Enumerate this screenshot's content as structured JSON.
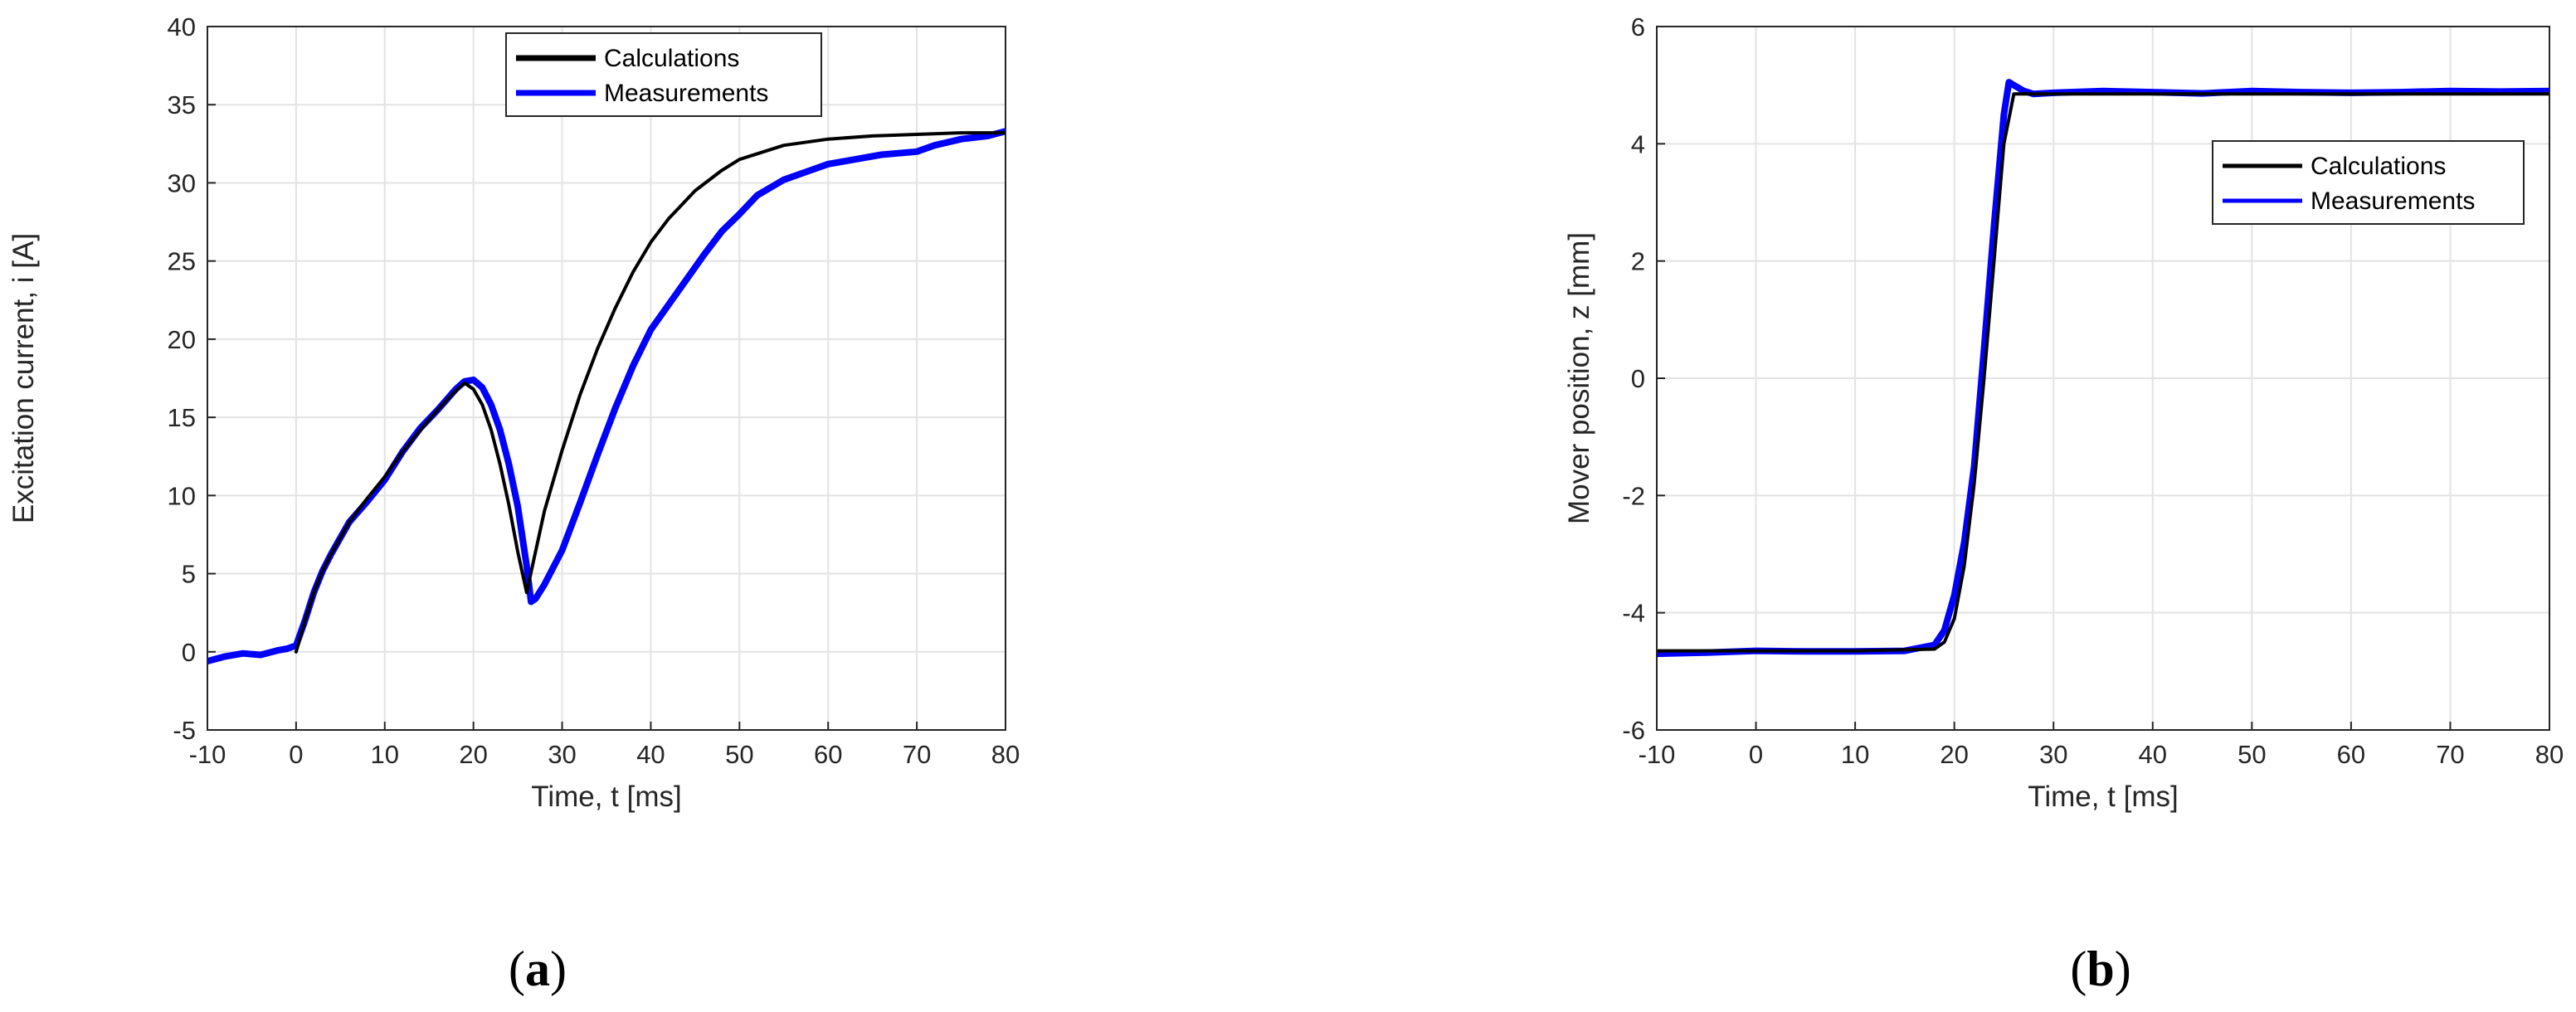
{
  "chart_data": [
    {
      "panel": "a",
      "type": "line",
      "xlabel": "Time, t [ms]",
      "ylabel": "Excitation current, i [A]",
      "xlim": [
        -10,
        80
      ],
      "ylim": [
        -5,
        40
      ],
      "xticks": [
        -10,
        0,
        10,
        20,
        30,
        40,
        50,
        60,
        70,
        80
      ],
      "yticks": [
        -5,
        0,
        5,
        10,
        15,
        20,
        25,
        30,
        35,
        40
      ],
      "grid": true,
      "legend_placement": "top-center",
      "caption": {
        "open": "(",
        "letter": "a",
        "close": ")"
      },
      "series": [
        {
          "name": "Calculations",
          "color": "#000000",
          "x": [
            0,
            1,
            2,
            3,
            4,
            6,
            8,
            10,
            12,
            14,
            16,
            18,
            19,
            20,
            21,
            22,
            23,
            24,
            25,
            26,
            27,
            28,
            30,
            32,
            34,
            36,
            38,
            40,
            42,
            45,
            48,
            50,
            55,
            60,
            65,
            70,
            75,
            80
          ],
          "y": [
            0,
            2.0,
            3.8,
            5.2,
            6.3,
            8.3,
            9.8,
            11.2,
            12.8,
            14.2,
            15.5,
            16.7,
            17.2,
            16.8,
            15.8,
            14.2,
            12.0,
            9.4,
            6.4,
            3.8,
            6.4,
            9.0,
            12.9,
            16.4,
            19.4,
            22.0,
            24.3,
            26.2,
            27.7,
            29.5,
            30.8,
            31.5,
            32.4,
            32.8,
            33.0,
            33.1,
            33.2,
            33.2
          ]
        },
        {
          "name": "Measurements",
          "color": "#0000ff",
          "x": [
            -10,
            -8,
            -6,
            -4,
            -2,
            -1,
            0,
            1,
            2,
            3,
            4,
            6,
            8,
            10,
            12,
            14,
            16,
            18,
            19,
            20,
            21,
            22,
            23,
            24,
            25,
            26,
            26.5,
            27,
            28,
            30,
            32,
            34,
            36,
            38,
            40,
            42,
            44,
            46,
            48,
            50,
            52,
            55,
            58,
            60,
            63,
            66,
            70,
            72,
            75,
            78,
            80
          ],
          "y": [
            -0.6,
            -0.3,
            -0.1,
            -0.2,
            0.1,
            0.2,
            0.4,
            2.0,
            3.8,
            5.2,
            6.3,
            8.3,
            9.6,
            11.0,
            12.8,
            14.3,
            15.5,
            16.8,
            17.3,
            17.4,
            16.9,
            15.8,
            14.2,
            12.0,
            9.3,
            5.5,
            3.2,
            3.4,
            4.3,
            6.5,
            9.5,
            12.6,
            15.6,
            18.3,
            20.6,
            22.2,
            23.8,
            25.4,
            26.9,
            28.0,
            29.2,
            30.2,
            30.8,
            31.2,
            31.5,
            31.8,
            32.0,
            32.4,
            32.8,
            33.0,
            33.3
          ]
        }
      ]
    },
    {
      "panel": "b",
      "type": "line",
      "xlabel": "Time, t [ms]",
      "ylabel": "Mover position, z [mm]",
      "xlim": [
        -10,
        80
      ],
      "ylim": [
        -6,
        6
      ],
      "xticks": [
        -10,
        0,
        10,
        20,
        30,
        40,
        50,
        60,
        70,
        80
      ],
      "yticks": [
        -6,
        -4,
        -2,
        0,
        2,
        4,
        6
      ],
      "grid": true,
      "legend_placement": "top-right",
      "caption": {
        "open": "(",
        "letter": "b",
        "close": ")"
      },
      "series": [
        {
          "name": "Calculations",
          "color": "#000000",
          "x": [
            -10,
            0,
            10,
            18,
            19,
            20,
            21,
            22,
            23,
            24,
            25,
            26,
            27,
            30,
            40,
            50,
            60,
            70,
            80
          ],
          "y": [
            -4.65,
            -4.65,
            -4.65,
            -4.62,
            -4.5,
            -4.1,
            -3.2,
            -1.8,
            0.0,
            2.0,
            4.0,
            4.85,
            4.85,
            4.85,
            4.85,
            4.85,
            4.85,
            4.85,
            4.85
          ]
        },
        {
          "name": "Measurements",
          "color": "#0000ff",
          "x": [
            -10,
            -5,
            0,
            5,
            10,
            15,
            18,
            19,
            20,
            21,
            22,
            23,
            24,
            25,
            25.5,
            26,
            27,
            28,
            30,
            35,
            40,
            45,
            50,
            55,
            60,
            65,
            70,
            75,
            80
          ],
          "y": [
            -4.7,
            -4.68,
            -4.65,
            -4.66,
            -4.66,
            -4.65,
            -4.55,
            -4.3,
            -3.7,
            -2.8,
            -1.5,
            0.5,
            2.6,
            4.5,
            5.05,
            5.0,
            4.9,
            4.85,
            4.87,
            4.9,
            4.88,
            4.86,
            4.9,
            4.88,
            4.87,
            4.88,
            4.9,
            4.89,
            4.9
          ]
        }
      ]
    }
  ]
}
